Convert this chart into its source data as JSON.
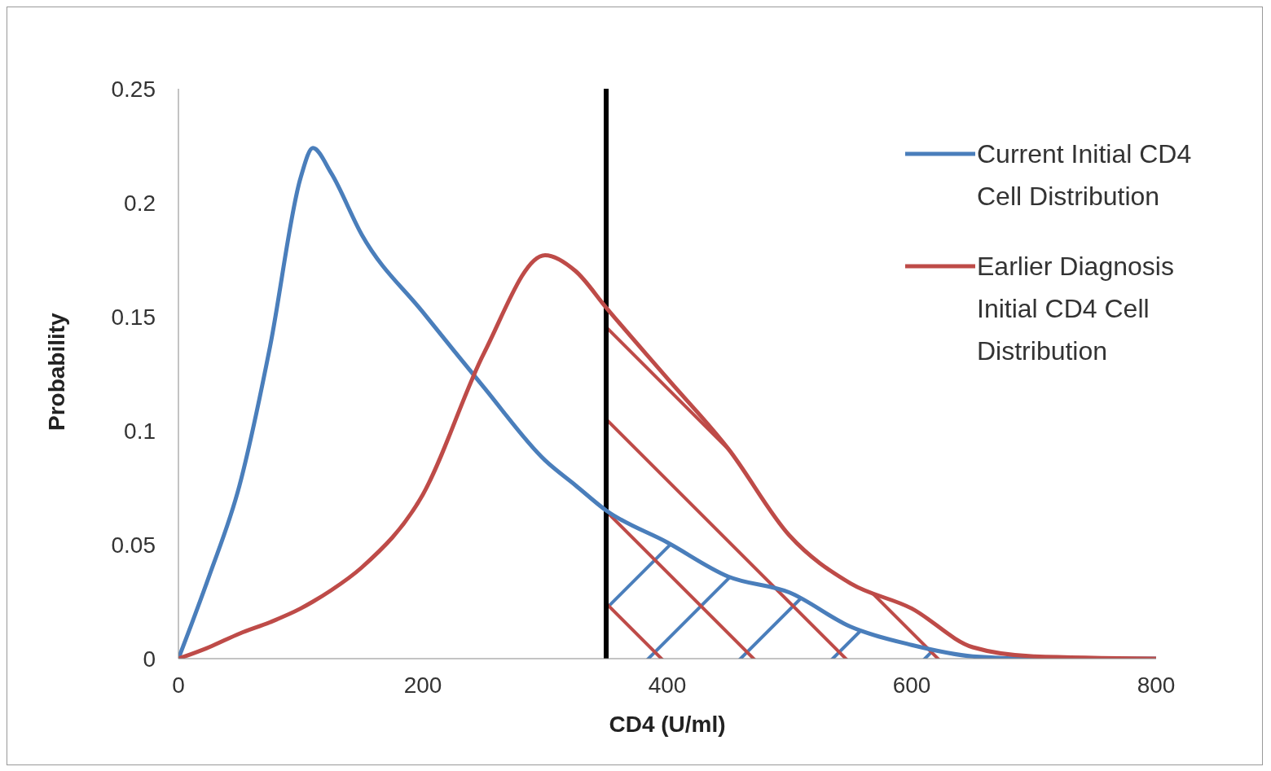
{
  "chart_data": {
    "type": "line",
    "xlabel": "CD4 (U/ml)",
    "ylabel": "Probability",
    "x": [
      0,
      25,
      50,
      75,
      100,
      110,
      125,
      150,
      200,
      250,
      300,
      325,
      350,
      400,
      450,
      500,
      550,
      600,
      650,
      700,
      800
    ],
    "series": [
      {
        "name": "Current Initial CD4 Cell Distribution",
        "color": "#4a7ebb",
        "values": [
          0,
          0.036,
          0.076,
          0.137,
          0.211,
          0.224,
          0.213,
          0.186,
          0.152,
          0.119,
          0.087,
          0.076,
          0.065,
          0.051,
          0.036,
          0.029,
          0.014,
          0.006,
          0.001,
          0,
          0
        ]
      },
      {
        "name": "Earlier Diagnosis Initial CD4 Cell Distribution",
        "color": "#be4b48",
        "values": [
          0,
          0.005,
          0.011,
          0.016,
          0.022,
          0.025,
          0.03,
          0.04,
          0.072,
          0.134,
          0.177,
          0.17,
          0.154,
          0.123,
          0.092,
          0.054,
          0.033,
          0.022,
          0.005,
          0.001,
          0
        ]
      }
    ],
    "xlim": [
      0,
      800
    ],
    "xticks": [
      0,
      200,
      400,
      600,
      800
    ],
    "ylim": [
      0,
      0.25
    ],
    "yticks": [
      0,
      0.05,
      0.1,
      0.15,
      0.2,
      0.25
    ],
    "ref_lines": [
      {
        "axis": "x",
        "value": 350,
        "color": "#000000"
      }
    ],
    "grid": false,
    "legend": "right",
    "marker": "none",
    "line_style": "solid"
  }
}
